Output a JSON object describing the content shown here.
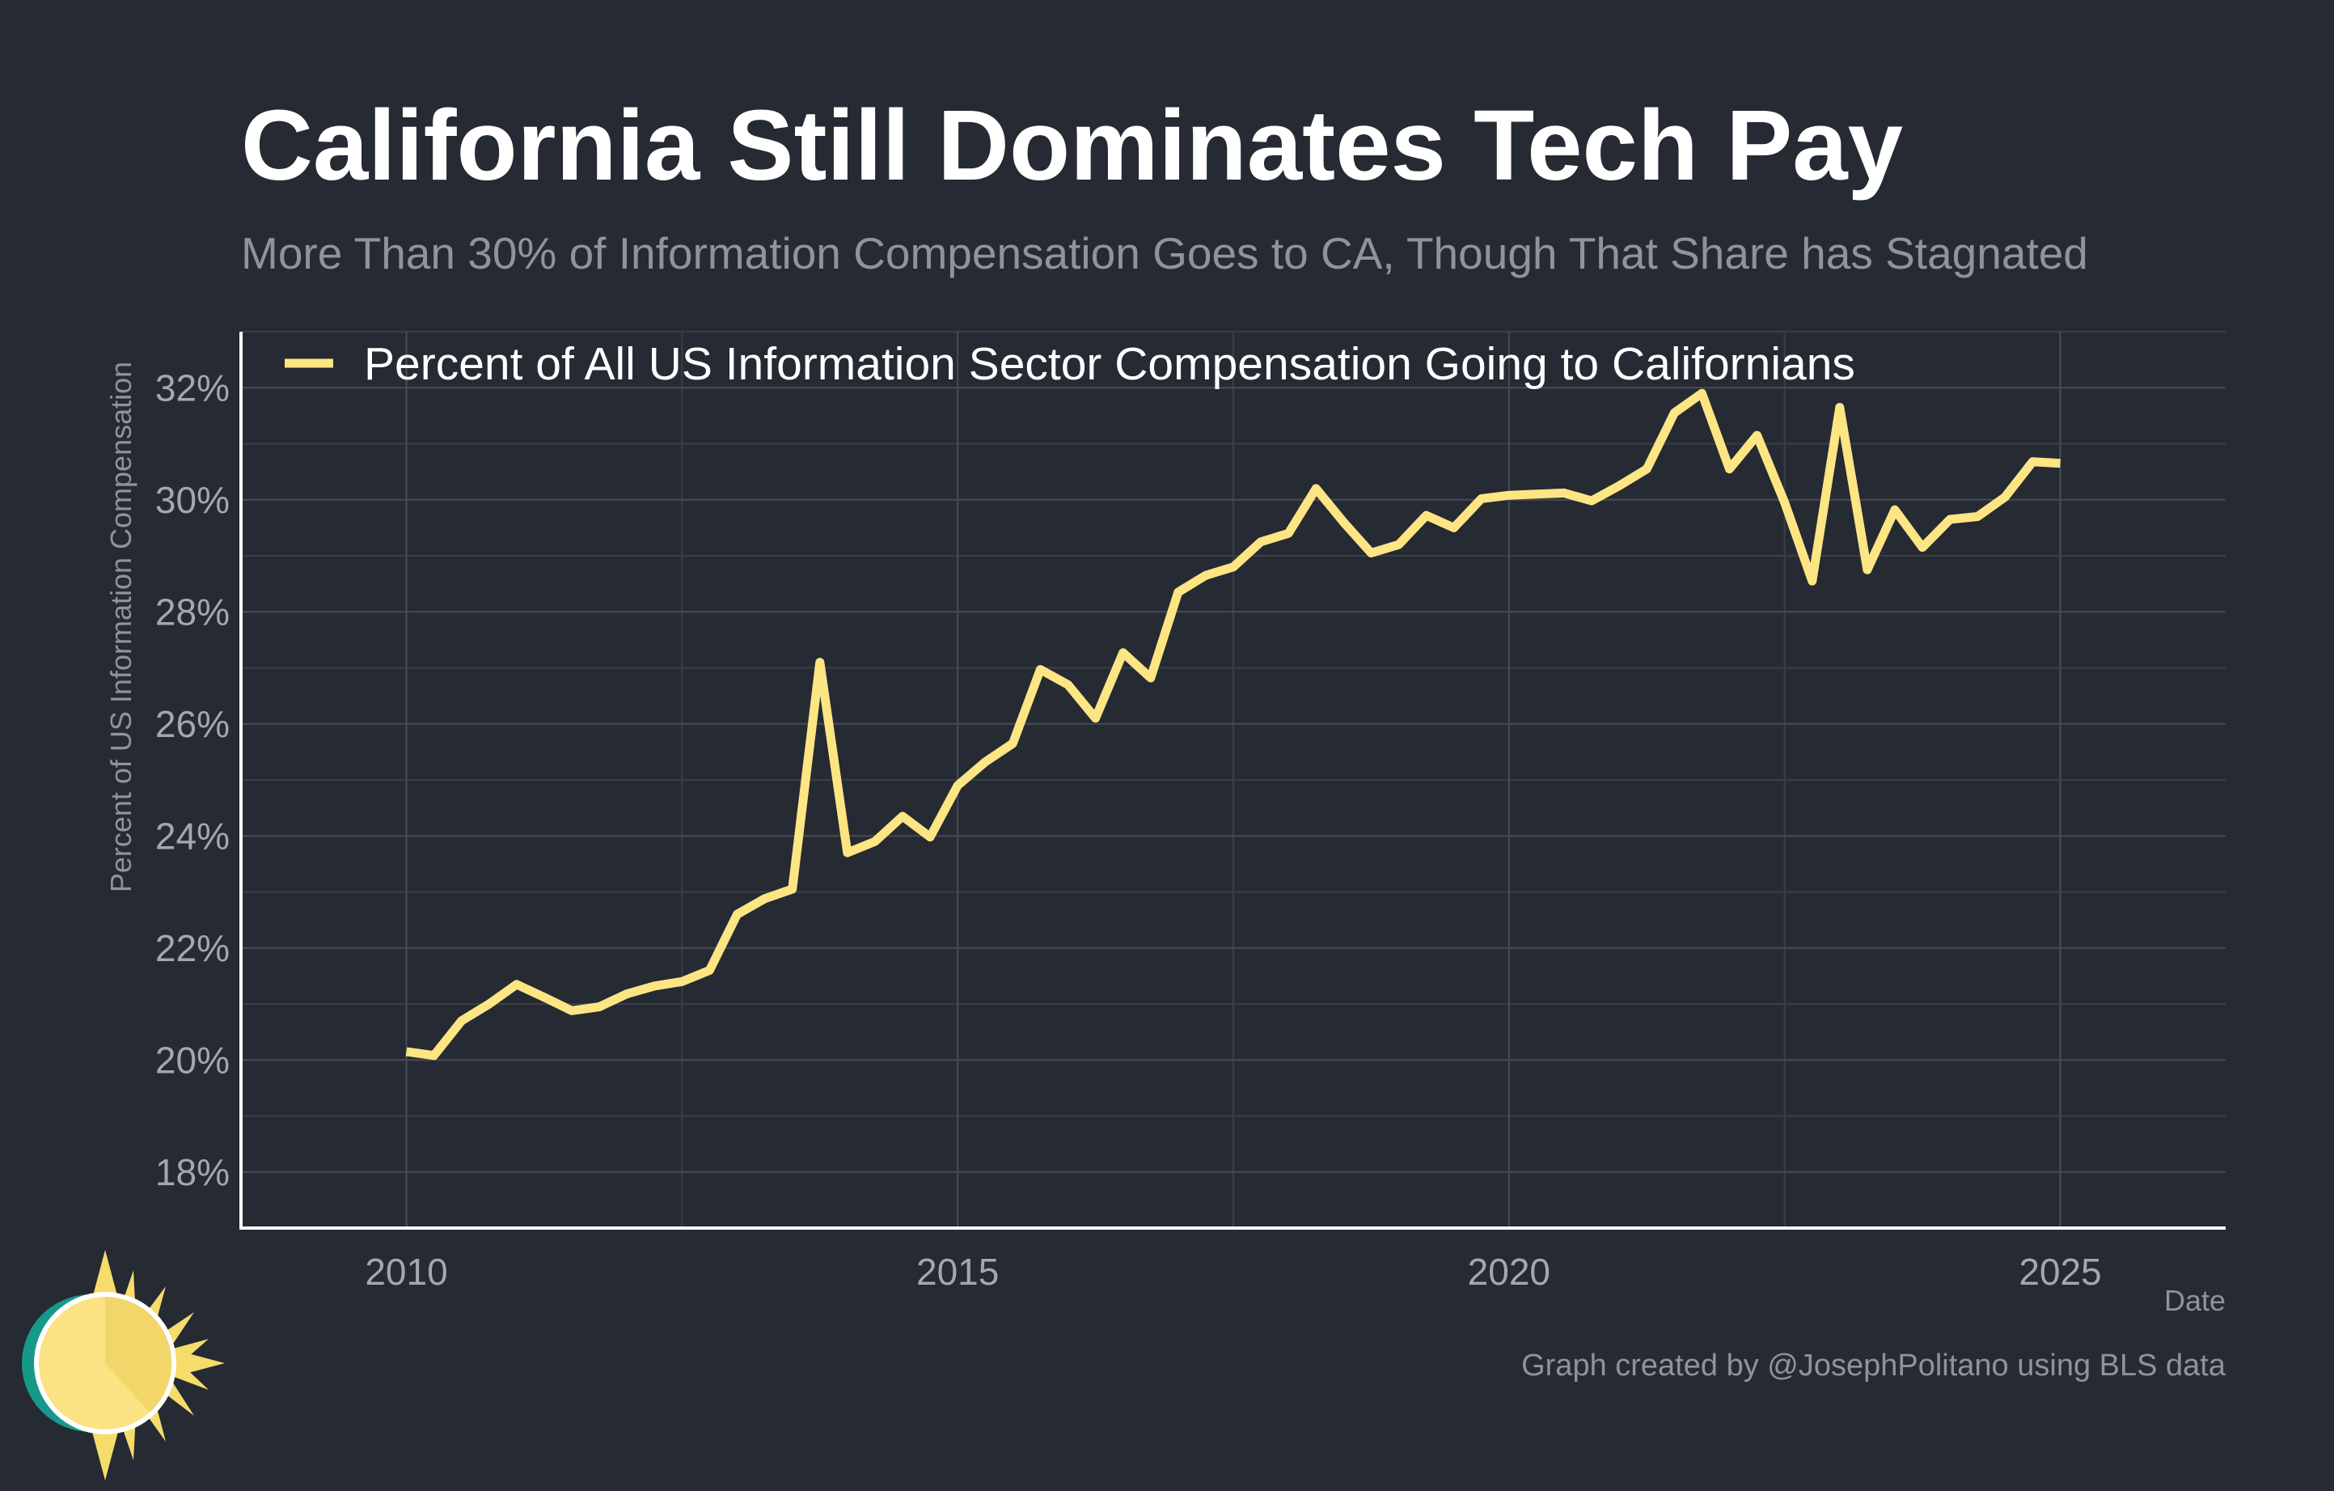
{
  "colors": {
    "background": "#252a33",
    "series": "#fee583",
    "title": "#ffffff",
    "subtitle": "#8f939b"
  },
  "chart_data": {
    "type": "line",
    "title": "California Still Dominates Tech Pay",
    "subtitle": "More Than 30% of Information Compensation Goes to CA, Though That Share has Stagnated",
    "xlabel": "Date",
    "ylabel": "Percent of US Information Compensation",
    "xlim": [
      2008.5,
      2026.5
    ],
    "ylim": [
      17,
      33
    ],
    "x_ticks": [
      2010,
      2015,
      2020,
      2025
    ],
    "x_tick_labels": [
      "2010",
      "2015",
      "2020",
      "2025"
    ],
    "y_ticks": [
      18,
      20,
      22,
      24,
      26,
      28,
      30,
      32
    ],
    "y_tick_labels": [
      "18%",
      "20%",
      "22%",
      "24%",
      "26%",
      "28%",
      "30%",
      "32%"
    ],
    "legend_position": "top-left",
    "grid": true,
    "series": [
      {
        "name": "Percent of All US Information Sector Compensation Going to Californians",
        "color": "#fee583",
        "x": [
          2010.0,
          2010.25,
          2010.5,
          2010.75,
          2011.0,
          2011.25,
          2011.5,
          2011.75,
          2012.0,
          2012.25,
          2012.5,
          2012.75,
          2013.0,
          2013.25,
          2013.5,
          2013.75,
          2014.0,
          2014.25,
          2014.5,
          2014.75,
          2015.0,
          2015.25,
          2015.5,
          2015.75,
          2016.0,
          2016.25,
          2016.5,
          2016.75,
          2017.0,
          2017.25,
          2017.5,
          2017.75,
          2018.0,
          2018.25,
          2018.5,
          2018.75,
          2019.0,
          2019.25,
          2019.5,
          2019.75,
          2020.0,
          2020.25,
          2020.5,
          2020.75,
          2021.0,
          2021.25,
          2021.5,
          2021.75,
          2022.0,
          2022.25,
          2022.5,
          2022.75,
          2023.0,
          2023.25,
          2023.5,
          2023.75,
          2024.0,
          2024.25,
          2024.5,
          2024.75,
          2025.0
        ],
        "y": [
          20.15,
          20.08,
          20.7,
          21.0,
          21.35,
          21.12,
          20.88,
          20.95,
          21.18,
          21.32,
          21.4,
          21.6,
          22.6,
          22.88,
          23.05,
          27.1,
          23.7,
          23.9,
          24.35,
          23.98,
          24.9,
          25.32,
          25.65,
          26.97,
          26.7,
          26.1,
          27.27,
          26.82,
          28.35,
          28.65,
          28.8,
          29.25,
          29.4,
          30.2,
          29.6,
          29.05,
          29.2,
          29.72,
          29.5,
          30.02,
          30.08,
          30.1,
          30.12,
          29.98,
          30.25,
          30.55,
          31.55,
          31.9,
          30.55,
          31.15,
          29.95,
          28.55,
          31.65,
          28.75,
          29.82,
          29.15,
          29.65,
          29.7,
          30.05,
          30.68,
          30.65
        ]
      }
    ]
  },
  "caption": "Graph created by @JosephPolitano using BLS data",
  "logo": {
    "icon": "sun-logo-icon"
  }
}
